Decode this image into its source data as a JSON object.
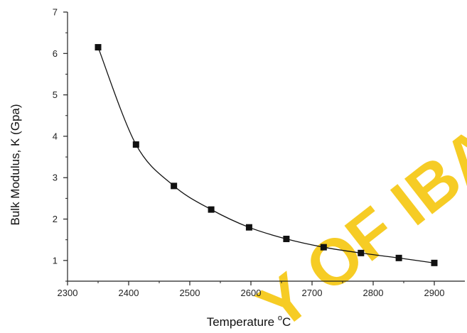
{
  "chart_data": {
    "type": "line",
    "title": "",
    "xlabel_main": "Temperature ",
    "xlabel_sup": "o",
    "xlabel_unit": "C",
    "ylabel": "Bulk Modulus, K (Gpa)",
    "xlim": [
      2300,
      2950
    ],
    "ylim": [
      0.5,
      7
    ],
    "xticks": [
      2300,
      2400,
      2500,
      2600,
      2700,
      2800,
      2900
    ],
    "yticks": [
      1,
      2,
      3,
      4,
      5,
      6,
      7
    ],
    "xtick_labels": [
      "2300",
      "2400",
      "2500",
      "2600",
      "2700",
      "2800",
      "2900"
    ],
    "ytick_labels": [
      "1",
      "2",
      "3",
      "4",
      "5",
      "6",
      "7"
    ],
    "grid": false,
    "marker": "square",
    "series_color": "#111111",
    "x": [
      2350,
      2412,
      2474,
      2535,
      2597,
      2658,
      2719,
      2780,
      2842,
      2900
    ],
    "y": [
      6.15,
      3.8,
      2.8,
      2.23,
      1.8,
      1.52,
      1.32,
      1.18,
      1.06,
      0.94
    ]
  },
  "watermark": {
    "text": "Y OF IBA",
    "color": "#f5c400"
  }
}
